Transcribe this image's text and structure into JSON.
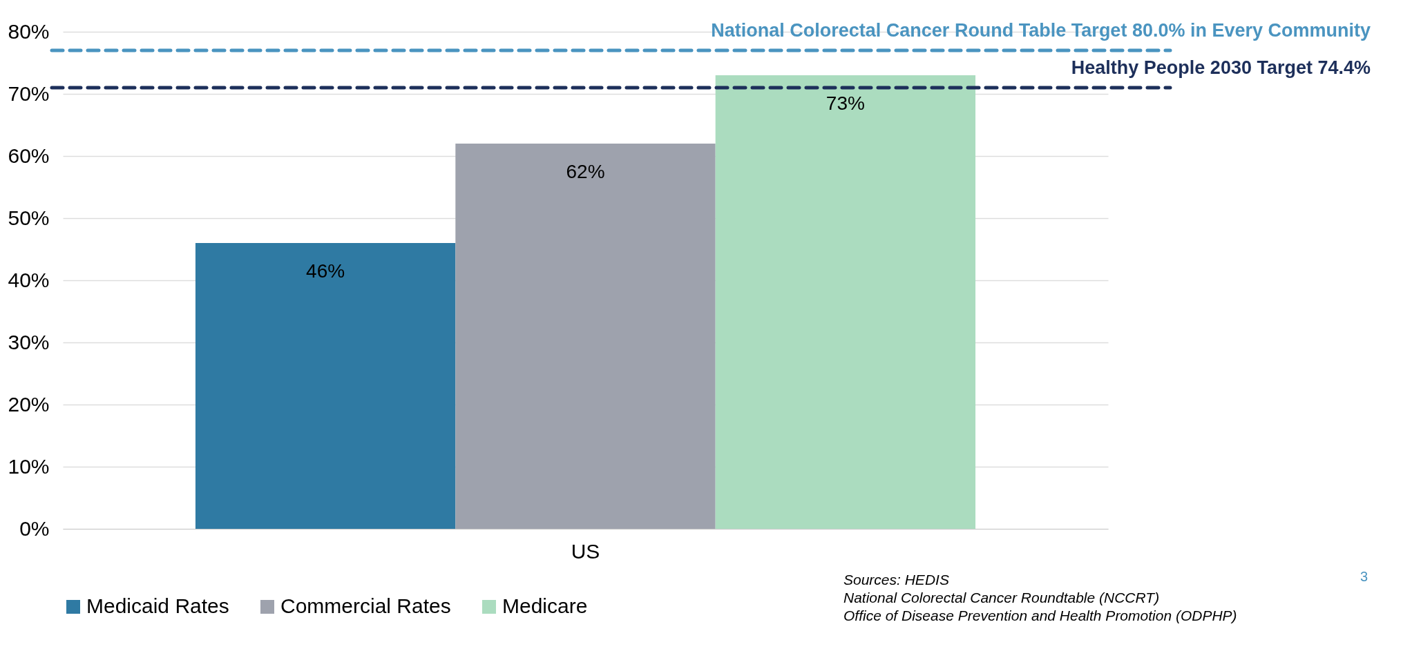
{
  "chart_data": {
    "type": "bar",
    "categories": [
      "US"
    ],
    "series": [
      {
        "name": "Medicaid Rates",
        "color": "#2f7aa3",
        "values": [
          46
        ],
        "value_labels": [
          "46%"
        ]
      },
      {
        "name": "Commercial Rates",
        "color": "#9ea2ad",
        "values": [
          62
        ],
        "value_labels": [
          "62%"
        ]
      },
      {
        "name": "Medicare",
        "color": "#abdcbf",
        "values": [
          73
        ],
        "value_labels": [
          "73%"
        ]
      }
    ],
    "ylim": [
      0,
      80
    ],
    "yticks": [
      {
        "value": 0,
        "label": "0%"
      },
      {
        "value": 10,
        "label": "10%"
      },
      {
        "value": 20,
        "label": "20%"
      },
      {
        "value": 30,
        "label": "30%"
      },
      {
        "value": 40,
        "label": "40%"
      },
      {
        "value": 50,
        "label": "50%"
      },
      {
        "value": 60,
        "label": "60%"
      },
      {
        "value": 70,
        "label": "70%"
      },
      {
        "value": 80,
        "label": "80%"
      }
    ],
    "grid": "y",
    "legend": "bottom left",
    "ref_lines": [
      {
        "axis": "y",
        "value": 77,
        "label": "National Colorectal Cancer Round Table Target 80.0% in Every Community",
        "color": "#4a94c0",
        "line_style": "dashed"
      },
      {
        "axis": "y",
        "value": 71,
        "label": "Healthy People 2030 Target 74.4%",
        "color": "#1d2f5a",
        "line_style": "dashed"
      }
    ],
    "annotations": [
      "Sources: HEDIS",
      "National Colorectal Cancer Roundtable (NCCRT)",
      "Office of Disease Prevention and Health Promotion (ODPHP)",
      "3"
    ]
  }
}
